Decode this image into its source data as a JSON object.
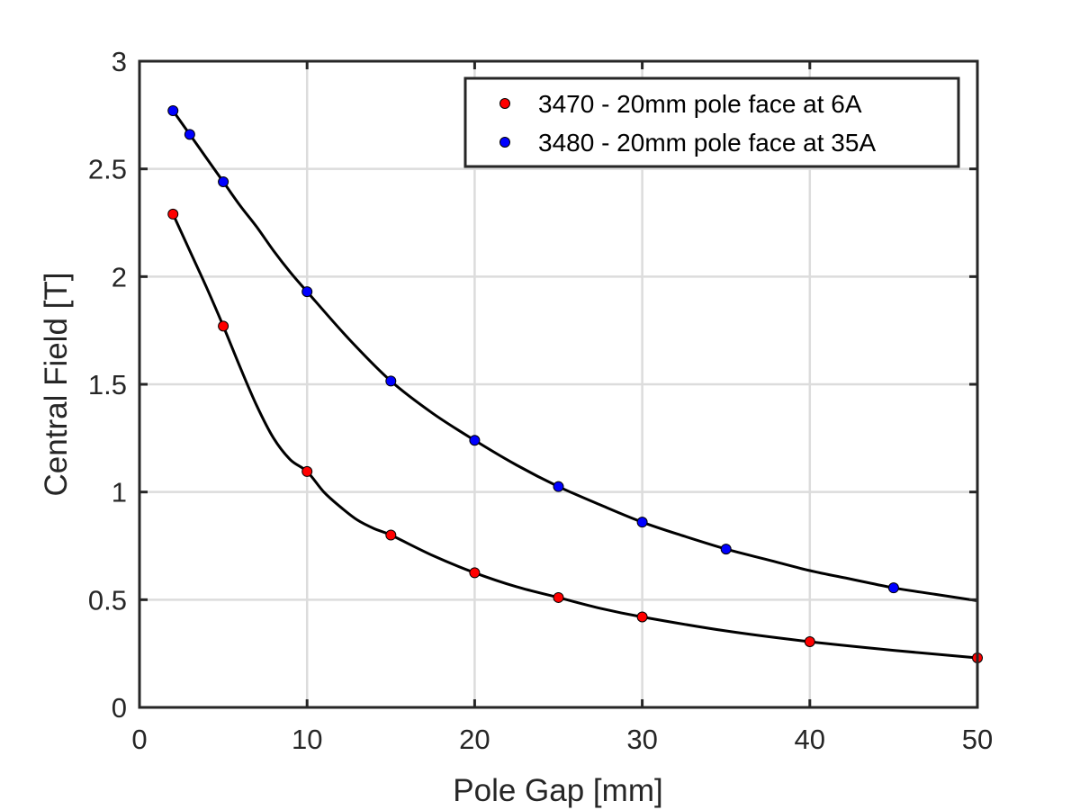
{
  "chart_data": {
    "type": "scatter",
    "title": "",
    "xlabel": "Pole Gap [mm]",
    "ylabel": "Central Field [T]",
    "xlim": [
      0,
      50
    ],
    "ylim": [
      0,
      3
    ],
    "x_ticks": [
      "0",
      "10",
      "20",
      "30",
      "40",
      "50"
    ],
    "y_ticks": [
      "0",
      "0.5",
      "1",
      "1.5",
      "2",
      "2.5",
      "3"
    ],
    "grid": true,
    "legend_position": "top-right",
    "series": [
      {
        "name": "3470 - 20mm pole face at 6A",
        "color": "#ff0000",
        "x": [
          2,
          5,
          10,
          15,
          20,
          25,
          30,
          40,
          50
        ],
        "y": [
          2.29,
          1.77,
          1.095,
          0.8,
          0.625,
          0.51,
          0.42,
          0.305,
          0.23
        ]
      },
      {
        "name": "3480 - 20mm pole face at 35A",
        "color": "#0000ff",
        "x": [
          2,
          3,
          5,
          10,
          15,
          20,
          25,
          30,
          35,
          45
        ],
        "y": [
          2.77,
          2.66,
          2.44,
          1.93,
          1.515,
          1.24,
          1.025,
          0.86,
          0.735,
          0.555
        ]
      }
    ],
    "fit_curves": [
      {
        "color": "#000000",
        "x": [
          2,
          3,
          4,
          5,
          6,
          7,
          8,
          9,
          10,
          11,
          12,
          13,
          14,
          15,
          17.5,
          20,
          22.5,
          25,
          27.5,
          30,
          35,
          40,
          45,
          50
        ],
        "y": [
          2.29,
          2.12,
          1.95,
          1.77,
          1.58,
          1.4,
          1.25,
          1.15,
          1.095,
          1.0,
          0.93,
          0.87,
          0.83,
          0.8,
          0.705,
          0.625,
          0.56,
          0.51,
          0.46,
          0.42,
          0.355,
          0.305,
          0.265,
          0.23
        ]
      },
      {
        "color": "#000000",
        "x": [
          2,
          3,
          4,
          5,
          6,
          7,
          8,
          9,
          10,
          12.5,
          15,
          17.5,
          20,
          22.5,
          25,
          27.5,
          30,
          32.5,
          35,
          37.5,
          40,
          42.5,
          45,
          47.5,
          50
        ],
        "y": [
          2.77,
          2.66,
          2.55,
          2.44,
          2.33,
          2.23,
          2.12,
          2.02,
          1.93,
          1.71,
          1.515,
          1.365,
          1.24,
          1.125,
          1.025,
          0.94,
          0.86,
          0.795,
          0.735,
          0.685,
          0.635,
          0.595,
          0.555,
          0.525,
          0.495
        ]
      }
    ]
  }
}
